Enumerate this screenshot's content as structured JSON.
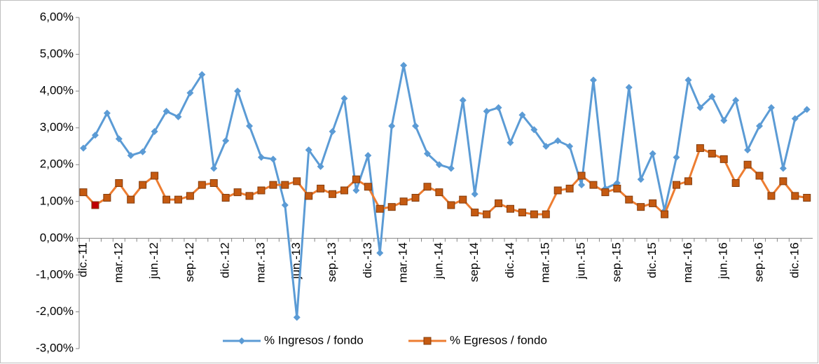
{
  "chart_data": {
    "type": "line",
    "categories": [
      "dic.-11",
      null,
      null,
      "mar.-12",
      null,
      null,
      "jun.-12",
      null,
      null,
      "sep.-12",
      null,
      null,
      "dic.-12",
      null,
      null,
      "mar.-13",
      null,
      null,
      "jun.-13",
      null,
      null,
      "sep.-13",
      null,
      null,
      "dic.-13",
      null,
      null,
      "mar.-14",
      null,
      null,
      "jun.-14",
      null,
      null,
      "sep.-14",
      null,
      null,
      "dic.-14",
      null,
      null,
      "mar.-15",
      null,
      null,
      "jun.-15",
      null,
      null,
      "sep.-15",
      null,
      null,
      "dic.-15",
      null,
      null,
      "mar.-16",
      null,
      null,
      "jun.-16",
      null,
      null,
      "sep.-16",
      null,
      null,
      "dic.-16",
      null
    ],
    "series": [
      {
        "name": "% Ingresos / fondo",
        "color": "#5b9bd5",
        "marker": "diamond",
        "values": [
          2.45,
          2.8,
          3.4,
          2.7,
          2.25,
          2.35,
          2.9,
          3.45,
          3.3,
          3.95,
          4.45,
          1.9,
          2.65,
          4.0,
          3.05,
          2.2,
          2.15,
          0.9,
          -2.15,
          2.4,
          1.95,
          2.9,
          3.8,
          1.3,
          2.25,
          -0.4,
          3.05,
          4.7,
          3.05,
          2.3,
          2.0,
          1.9,
          3.75,
          1.2,
          3.45,
          3.55,
          2.6,
          3.35,
          2.95,
          2.5,
          2.65,
          2.5,
          1.45,
          4.3,
          1.35,
          1.5,
          4.1,
          1.6,
          2.3,
          0.75,
          2.2,
          4.3,
          3.55,
          3.85,
          3.2,
          3.75,
          2.4,
          3.05,
          3.55,
          1.9,
          3.25,
          3.5
        ]
      },
      {
        "name": "% Egresos / fondo",
        "color": "#ed7d31",
        "marker": "square",
        "point_colors": {
          "1": "#c00000"
        },
        "values": [
          1.25,
          0.9,
          1.1,
          1.5,
          1.05,
          1.45,
          1.7,
          1.05,
          1.05,
          1.15,
          1.45,
          1.5,
          1.1,
          1.25,
          1.15,
          1.3,
          1.45,
          1.45,
          1.55,
          1.15,
          1.35,
          1.2,
          1.3,
          1.6,
          1.4,
          0.8,
          0.85,
          1.0,
          1.1,
          1.4,
          1.25,
          0.9,
          1.05,
          0.7,
          0.65,
          0.95,
          0.8,
          0.7,
          0.65,
          0.65,
          1.3,
          1.35,
          1.7,
          1.45,
          1.25,
          1.35,
          1.05,
          0.85,
          0.95,
          0.65,
          1.45,
          1.55,
          2.45,
          2.3,
          2.15,
          1.5,
          2.0,
          1.7,
          1.15,
          1.55,
          1.15,
          1.1
        ]
      }
    ],
    "ylim": [
      -3,
      6
    ],
    "yticks": [
      {
        "value": -3,
        "label": "-3,00%"
      },
      {
        "value": -2,
        "label": "-2,00%"
      },
      {
        "value": -1,
        "label": "-1,00%"
      },
      {
        "value": 0,
        "label": "0,00%"
      },
      {
        "value": 1,
        "label": "1,00%"
      },
      {
        "value": 2,
        "label": "2,00%"
      },
      {
        "value": 3,
        "label": "3,00%"
      },
      {
        "value": 4,
        "label": "4,00%"
      },
      {
        "value": 5,
        "label": "5,00%"
      },
      {
        "value": 6,
        "label": "6,00%"
      }
    ],
    "grid": false,
    "legend": "bottom"
  }
}
